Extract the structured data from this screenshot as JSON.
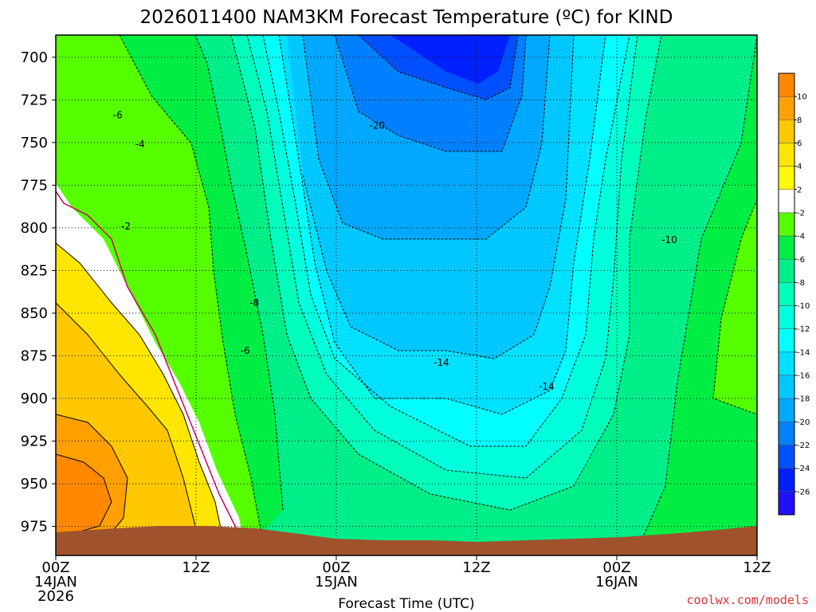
{
  "chart_data": {
    "type": "heatmap",
    "title": "2026011400 NAM3KM Forecast Temperature (ºC) for KIND",
    "xlabel": "Forecast Time (UTC)",
    "ylabel": "",
    "x_ticks": [
      {
        "hour": 0,
        "label": "00Z",
        "date": "14JAN",
        "year": "2026"
      },
      {
        "hour": 12,
        "label": "12Z",
        "date": "",
        "year": ""
      },
      {
        "hour": 24,
        "label": "00Z",
        "date": "15JAN",
        "year": ""
      },
      {
        "hour": 36,
        "label": "12Z",
        "date": "",
        "year": ""
      },
      {
        "hour": 48,
        "label": "00Z",
        "date": "16JAN",
        "year": ""
      },
      {
        "hour": 60,
        "label": "12Z",
        "date": "",
        "year": ""
      }
    ],
    "xlim": [
      0,
      60
    ],
    "y_ticks": [
      700,
      725,
      750,
      775,
      800,
      825,
      850,
      875,
      900,
      925,
      950,
      975
    ],
    "ylim": [
      687,
      992
    ],
    "y_reversed": true,
    "colorbar": {
      "levels": [
        -26,
        -24,
        -22,
        -20,
        -18,
        -16,
        -14,
        -12,
        -10,
        -8,
        -6,
        -4,
        -2,
        2,
        4,
        6,
        8,
        10
      ],
      "tick_labels": [
        "10",
        "8",
        "6",
        "4",
        "2",
        "-2",
        "-4",
        "-6",
        "-8",
        "-10",
        "-12",
        "-14",
        "-16",
        "-18",
        "-20",
        "-22",
        "-24",
        "-26"
      ],
      "colors": [
        "#ff8800",
        "#ffa000",
        "#ffc800",
        "#ffe600",
        "#fffa00",
        "#ffffff",
        "#55ff00",
        "#00ee44",
        "#00ee88",
        "#00ffbb",
        "#00ffdd",
        "#00ffff",
        "#00e0ff",
        "#00c8ff",
        "#00a8ff",
        "#0080ff",
        "#0050ff",
        "#0020ff",
        "#2010ff"
      ]
    },
    "contour_labels": [
      {
        "text": "-6",
        "hour": 5.3,
        "p": 734
      },
      {
        "text": "-4",
        "hour": 7.2,
        "p": 751
      },
      {
        "text": "-2",
        "hour": 6.0,
        "p": 799
      },
      {
        "text": "-20",
        "hour": 27.5,
        "p": 740
      },
      {
        "text": "-8",
        "hour": 17.0,
        "p": 844
      },
      {
        "text": "-6",
        "hour": 16.2,
        "p": 872
      },
      {
        "text": "-14",
        "hour": 33.0,
        "p": 879
      },
      {
        "text": "-14",
        "hour": 42.0,
        "p": 893
      },
      {
        "text": "-10",
        "hour": 52.5,
        "p": 807
      }
    ],
    "ground_color": "#a0522d"
  },
  "credit": "coolwx.com/models",
  "credit_color": "#e03030"
}
